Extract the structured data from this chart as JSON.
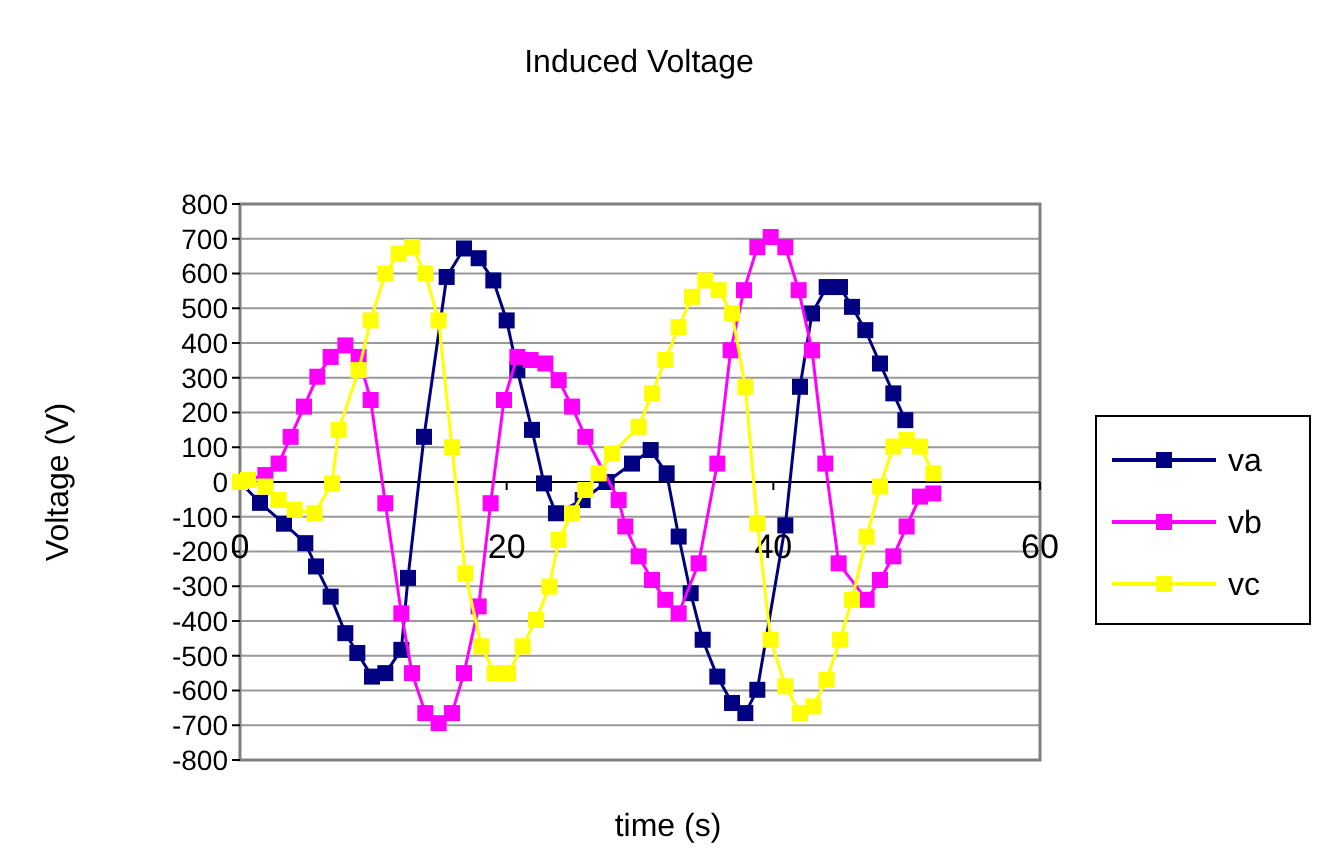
{
  "chart_data": {
    "type": "line",
    "title": "Induced Voltage",
    "xlabel": "time (s)",
    "ylabel": "Voltage (V)",
    "xlim": [
      0,
      60
    ],
    "xticks": [
      0,
      20,
      40,
      60
    ],
    "ylim": [
      -800,
      800
    ],
    "yticks": [
      -800,
      -700,
      -600,
      -500,
      -400,
      -300,
      -200,
      -100,
      0,
      100,
      200,
      300,
      400,
      500,
      600,
      700,
      800
    ],
    "grid": "y",
    "legend": "right",
    "marker": "square",
    "line_style": "solid",
    "series": [
      {
        "name": "va",
        "color": "#000080",
        "x": [
          0,
          1.5,
          3.3,
          4.9,
          5.7,
          6.8,
          7.9,
          8.8,
          9.9,
          10.9,
          12.1,
          12.6,
          13.8,
          15.5,
          16.8,
          17.9,
          19,
          20,
          20.8,
          21.9,
          22.8,
          23.7,
          25.7,
          27.5,
          29.4,
          30.8,
          32,
          32.9,
          33.8,
          34.7,
          35.8,
          36.9,
          37.9,
          38.8,
          40.9,
          42,
          42.9,
          44,
          45,
          45.9,
          46.9,
          48,
          49,
          49.9
        ],
        "values": [
          0,
          -60,
          -120,
          -176,
          -243,
          -330,
          -435,
          -492,
          -560,
          -550,
          -483,
          -276,
          130,
          590,
          672,
          644,
          580,
          465,
          322,
          150,
          -4,
          -90,
          -52,
          0,
          53,
          92,
          25,
          -157,
          -320,
          -454,
          -560,
          -636,
          -665,
          -598,
          -125,
          274,
          485,
          561,
          561,
          504,
          437,
          341,
          255,
          178
        ]
      },
      {
        "name": "vb",
        "color": "#ff00ff",
        "x": [
          0,
          1,
          1.9,
          2.9,
          3.8,
          4.8,
          5.8,
          6.8,
          7.9,
          8.9,
          9.8,
          10.9,
          12.1,
          12.9,
          13.9,
          14.9,
          15.9,
          16.8,
          17.9,
          18.8,
          19.8,
          20.8,
          21.8,
          22.9,
          23.9,
          24.9,
          25.9,
          27.2,
          28.4,
          28.9,
          29.9,
          30.9,
          31.9,
          32.9,
          34.4,
          35.8,
          36.8,
          37.8,
          38.8,
          39.8,
          40.9,
          41.9,
          42.9,
          43.9,
          44.9,
          45.9,
          47,
          48,
          49,
          50,
          51,
          52
        ],
        "values": [
          0,
          null,
          20,
          53,
          130,
          217,
          303,
          360,
          393,
          360,
          236,
          -61,
          -378,
          -550,
          -665,
          -694,
          -665,
          -550,
          -358,
          -61,
          236,
          360,
          351,
          341,
          293,
          217,
          130,
          null,
          -52,
          -128,
          -214,
          -282,
          -339,
          -378,
          -234,
          53,
          379,
          552,
          676,
          705,
          676,
          552,
          379,
          53,
          -234,
          null,
          -339,
          -282,
          -214,
          -128,
          -42,
          -33
        ]
      },
      {
        "name": "vc",
        "color": "#ffff00",
        "x": [
          0,
          0.6,
          1.9,
          2.9,
          4.1,
          5.6,
          6.9,
          7.4,
          8.9,
          9.8,
          10.9,
          11.9,
          12.9,
          13.9,
          14.9,
          15.9,
          16.9,
          18.1,
          19.1,
          20.1,
          21.2,
          22.2,
          23.2,
          23.9,
          24.9,
          25.9,
          26.9,
          27.9,
          29.9,
          30.9,
          31.9,
          32.9,
          33.9,
          34.9,
          35.9,
          36.9,
          37.9,
          38.8,
          39.8,
          40.9,
          42,
          43,
          44,
          45,
          45.9,
          47,
          48,
          49,
          50,
          51,
          52
        ],
        "values": [
          0,
          6,
          -13,
          -52,
          -80,
          -90,
          -4,
          150,
          322,
          465,
          600,
          657,
          676,
          600,
          465,
          100,
          -263,
          -473,
          -550,
          -550,
          -473,
          -397,
          -301,
          -167,
          -90,
          -23,
          25,
          82,
          159,
          255,
          351,
          446,
          533,
          580,
          552,
          485,
          274,
          -119,
          -454,
          -588,
          -665,
          -646,
          -569,
          -454,
          -339,
          -157,
          -13,
          102,
          121,
          102,
          25
        ]
      }
    ]
  }
}
